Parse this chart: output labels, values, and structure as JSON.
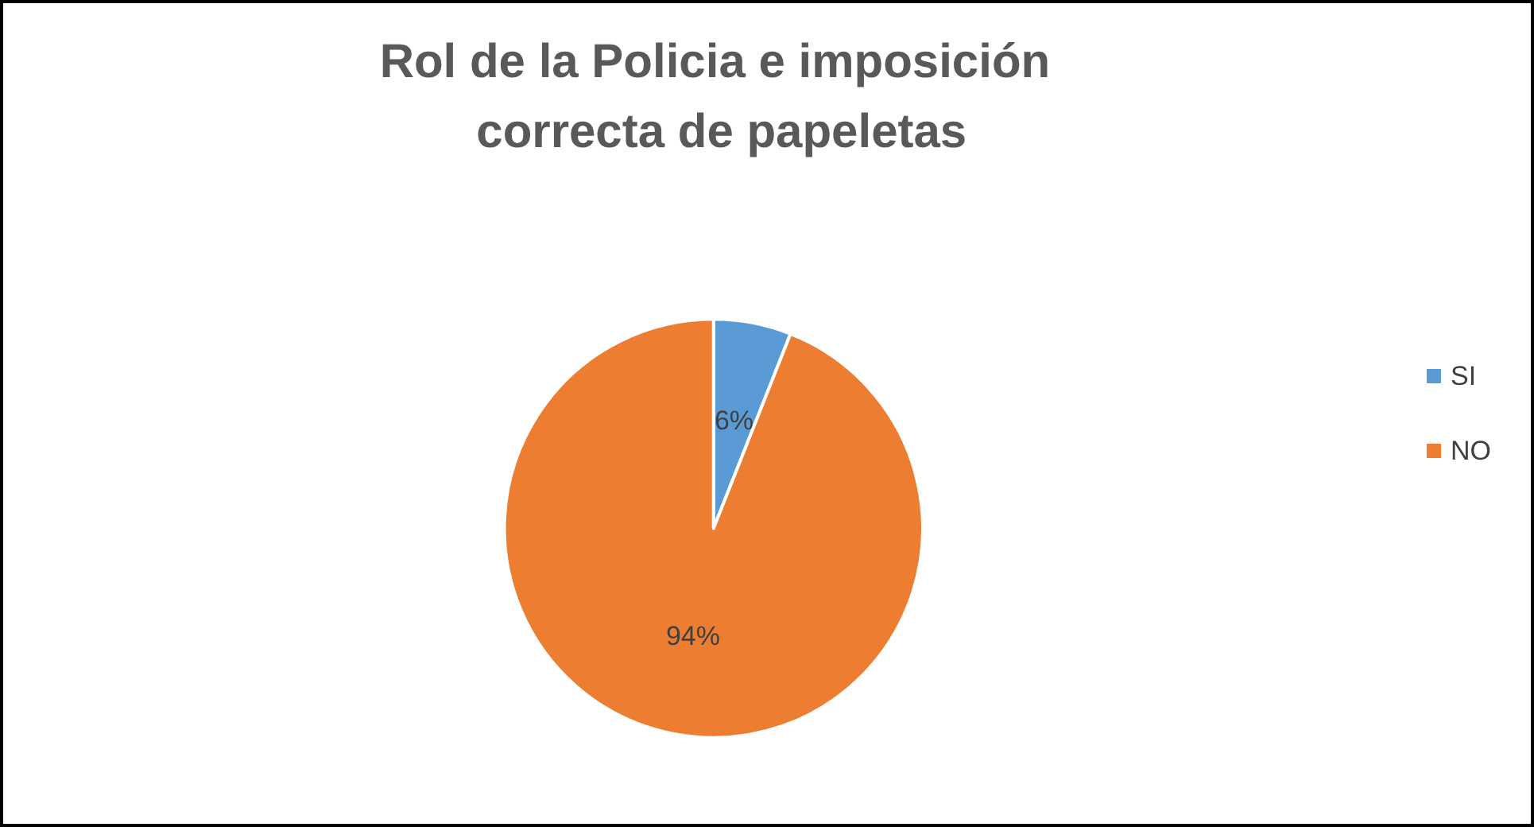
{
  "chart_data": {
    "type": "pie",
    "title": "Rol de la Policia e imposición correcta de papeletas",
    "categories": [
      "SI",
      "NO"
    ],
    "values": [
      6,
      94
    ],
    "colors": [
      "#5b9bd5",
      "#ed7d31"
    ],
    "value_labels": [
      "6%",
      "94%"
    ],
    "legend": "right"
  }
}
